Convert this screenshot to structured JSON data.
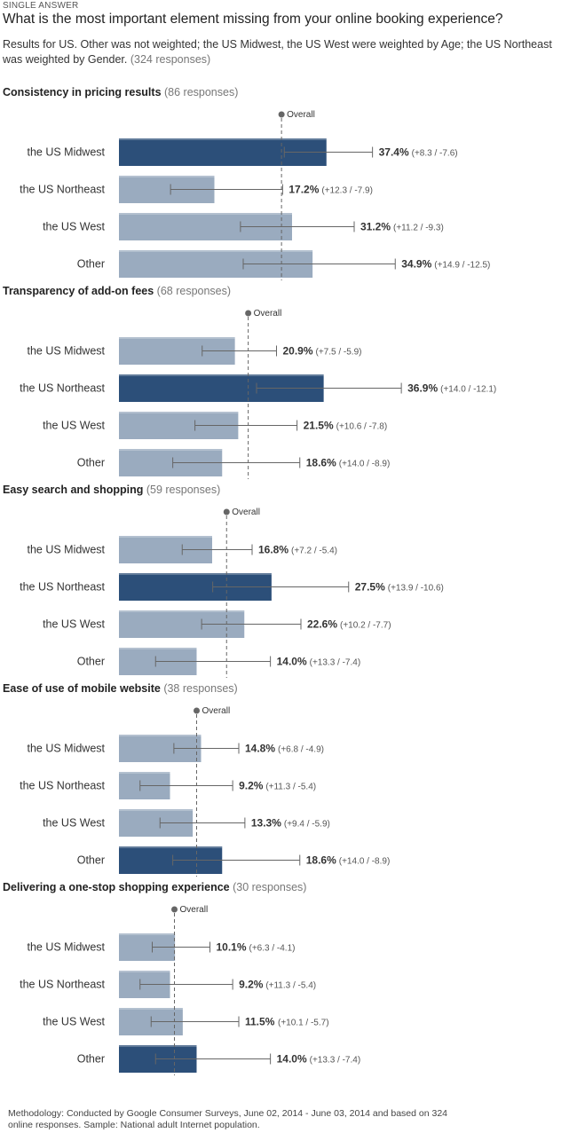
{
  "header": {
    "answer_type": "SINGLE ANSWER",
    "question": "What is the most important element missing from your online booking experience?",
    "subtitle": "Results for US. Other was not weighted; the US Midwest, the US West were weighted by Age; the US Northeast was weighted by Gender.",
    "responses": "(324 responses)"
  },
  "overall_label": "Overall",
  "colors": {
    "highlight": "#2c4f79",
    "bar": "#9aabbf",
    "overall": "#666666"
  },
  "chart_data": [
    {
      "type": "bar",
      "title": "Consistency in pricing results",
      "responses": "(86 responses)",
      "overall": 29.3,
      "categories": [
        "the US Midwest",
        "the US Northeast",
        "the US West",
        "Other"
      ],
      "values": [
        37.4,
        17.2,
        31.2,
        34.9
      ],
      "value_labels": [
        "37.4%",
        "17.2%",
        "31.2%",
        "34.9%"
      ],
      "error_plus": [
        8.3,
        12.3,
        11.2,
        14.9
      ],
      "error_minus": [
        7.6,
        7.9,
        9.3,
        12.5
      ],
      "error_labels": [
        "(+8.3 / -7.6)",
        "(+12.3 / -7.9)",
        "(+11.2 / -9.3)",
        "(+14.9 / -12.5)"
      ],
      "highlight": [
        true,
        false,
        false,
        false
      ]
    },
    {
      "type": "bar",
      "title": "Transparency of add-on fees",
      "responses": "(68 responses)",
      "overall": 23.3,
      "categories": [
        "the US Midwest",
        "the US Northeast",
        "the US West",
        "Other"
      ],
      "values": [
        20.9,
        36.9,
        21.5,
        18.6
      ],
      "value_labels": [
        "20.9%",
        "36.9%",
        "21.5%",
        "18.6%"
      ],
      "error_plus": [
        7.5,
        14.0,
        10.6,
        14.0
      ],
      "error_minus": [
        5.9,
        12.1,
        7.8,
        8.9
      ],
      "error_labels": [
        "(+7.5 / -5.9)",
        "(+14.0 / -12.1)",
        "(+10.6 / -7.8)",
        "(+14.0 / -8.9)"
      ],
      "highlight": [
        false,
        true,
        false,
        false
      ]
    },
    {
      "type": "bar",
      "title": "Easy search and shopping",
      "responses": "(59 responses)",
      "overall": 19.4,
      "categories": [
        "the US Midwest",
        "the US Northeast",
        "the US West",
        "Other"
      ],
      "values": [
        16.8,
        27.5,
        22.6,
        14.0
      ],
      "value_labels": [
        "16.8%",
        "27.5%",
        "22.6%",
        "14.0%"
      ],
      "error_plus": [
        7.2,
        13.9,
        10.2,
        13.3
      ],
      "error_minus": [
        5.4,
        10.6,
        7.7,
        7.4
      ],
      "error_labels": [
        "(+7.2 / -5.4)",
        "(+13.9 / -10.6)",
        "(+10.2 / -7.7)",
        "(+13.3 / -7.4)"
      ],
      "highlight": [
        false,
        true,
        false,
        false
      ]
    },
    {
      "type": "bar",
      "title": "Ease of use of mobile website",
      "responses": "(38 responses)",
      "overall": 14.0,
      "categories": [
        "the US Midwest",
        "the US Northeast",
        "the US West",
        "Other"
      ],
      "values": [
        14.8,
        9.2,
        13.3,
        18.6
      ],
      "value_labels": [
        "14.8%",
        "9.2%",
        "13.3%",
        "18.6%"
      ],
      "error_plus": [
        6.8,
        11.3,
        9.4,
        14.0
      ],
      "error_minus": [
        4.9,
        5.4,
        5.9,
        8.9
      ],
      "error_labels": [
        "(+6.8 / -4.9)",
        "(+11.3 / -5.4)",
        "(+9.4 / -5.9)",
        "(+14.0 / -8.9)"
      ],
      "highlight": [
        false,
        false,
        false,
        true
      ]
    },
    {
      "type": "bar",
      "title": "Delivering a one-stop shopping experience",
      "responses": "(30 responses)",
      "overall": 10.0,
      "categories": [
        "the US Midwest",
        "the US Northeast",
        "the US West",
        "Other"
      ],
      "values": [
        10.1,
        9.2,
        11.5,
        14.0
      ],
      "value_labels": [
        "10.1%",
        "9.2%",
        "11.5%",
        "14.0%"
      ],
      "error_plus": [
        6.3,
        11.3,
        10.1,
        13.3
      ],
      "error_minus": [
        4.1,
        5.4,
        5.7,
        7.4
      ],
      "error_labels": [
        "(+6.3 / -4.1)",
        "(+11.3 / -5.4)",
        "(+10.1 / -5.7)",
        "(+13.3 / -7.4)"
      ],
      "highlight": [
        false,
        false,
        false,
        true
      ]
    }
  ],
  "footer": {
    "methodology": "Methodology: Conducted by Google Consumer Surveys, June 02, 2014 - June 03, 2014 and based on 324 online responses. Sample: National adult Internet population."
  }
}
